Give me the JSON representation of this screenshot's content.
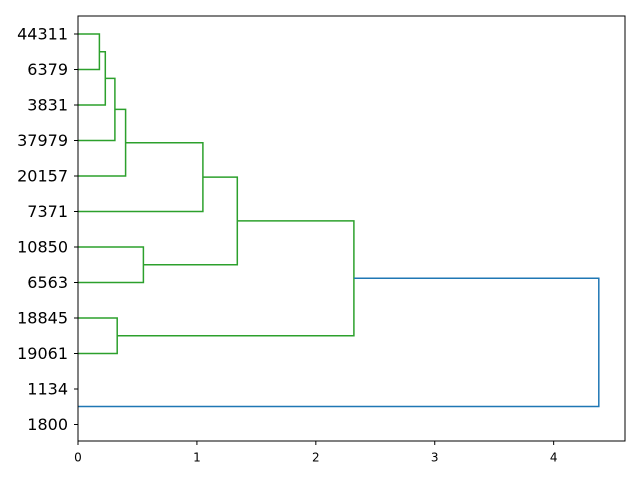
{
  "chart_data": {
    "type": "dendrogram",
    "orientation": "horizontal",
    "title": "",
    "xlabel": "",
    "ylabel": "",
    "xlim": [
      0,
      4.6
    ],
    "x_ticks": [
      0,
      1,
      2,
      3,
      4
    ],
    "grid": false,
    "legend": "none",
    "leaves": [
      "44311",
      "6379",
      "3831",
      "37979",
      "20157",
      "7371",
      "10850",
      "6563",
      "18845",
      "19061",
      "1134",
      "1800"
    ],
    "merges": [
      {
        "left": "44311",
        "right": "6379",
        "distance": 0.18,
        "cluster": "C1"
      },
      {
        "left": "C1",
        "right": "3831",
        "distance": 0.23,
        "cluster": "C2"
      },
      {
        "left": "C2",
        "right": "37979",
        "distance": 0.31,
        "cluster": "C3"
      },
      {
        "left": "C3",
        "right": "20157",
        "distance": 0.4,
        "cluster": "C4"
      },
      {
        "left": "C4",
        "right": "7371",
        "distance": 1.05,
        "cluster": "C5"
      },
      {
        "left": "10850",
        "right": "6563",
        "distance": 0.55,
        "cluster": "C6"
      },
      {
        "left": "C5",
        "right": "C6",
        "distance": 1.34,
        "cluster": "C7"
      },
      {
        "left": "18845",
        "right": "19061",
        "distance": 0.33,
        "cluster": "C8"
      },
      {
        "left": "C7",
        "right": "C8",
        "distance": 2.32,
        "cluster": "C9"
      },
      {
        "left": "C9",
        "right": "1134+1800",
        "distance": 4.38,
        "cluster": "ROOT",
        "color": "#1f77b4"
      }
    ],
    "colors": {
      "cluster": "#2ca02c",
      "above_threshold": "#1f77b4",
      "axes": "#000000"
    }
  }
}
